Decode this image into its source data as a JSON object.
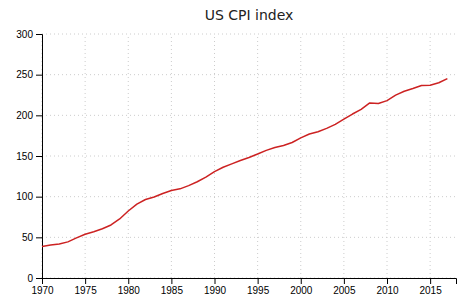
{
  "chart_data": {
    "type": "line",
    "title": "US CPI index",
    "x": [
      1970,
      1971,
      1972,
      1973,
      1974,
      1975,
      1976,
      1977,
      1978,
      1979,
      1980,
      1981,
      1982,
      1983,
      1984,
      1985,
      1986,
      1987,
      1988,
      1989,
      1990,
      1991,
      1992,
      1993,
      1994,
      1995,
      1996,
      1997,
      1998,
      1999,
      2000,
      2001,
      2002,
      2003,
      2004,
      2005,
      2006,
      2007,
      2008,
      2009,
      2010,
      2011,
      2012,
      2013,
      2014,
      2015,
      2016,
      2017
    ],
    "values": [
      38.8,
      40.5,
      41.8,
      44.4,
      49.3,
      53.8,
      56.9,
      60.6,
      65.2,
      72.6,
      82.4,
      90.9,
      96.5,
      99.6,
      103.9,
      107.6,
      109.6,
      113.6,
      118.3,
      124.0,
      130.7,
      136.2,
      140.3,
      144.5,
      148.2,
      152.4,
      156.9,
      160.5,
      163.0,
      166.6,
      172.2,
      177.1,
      179.9,
      184.0,
      188.9,
      195.3,
      201.6,
      207.3,
      215.3,
      214.5,
      218.1,
      224.9,
      229.6,
      233.0,
      236.7,
      237.0,
      240.0,
      245.1
    ],
    "color": "#cc2222",
    "xlim": [
      1970,
      2018
    ],
    "xticks": [
      1970,
      1975,
      1980,
      1985,
      1990,
      1995,
      2000,
      2005,
      2010,
      2015
    ],
    "ylim": [
      0,
      300
    ],
    "yticks": [
      0,
      50,
      100,
      150,
      200,
      250,
      300
    ],
    "grid": true
  }
}
